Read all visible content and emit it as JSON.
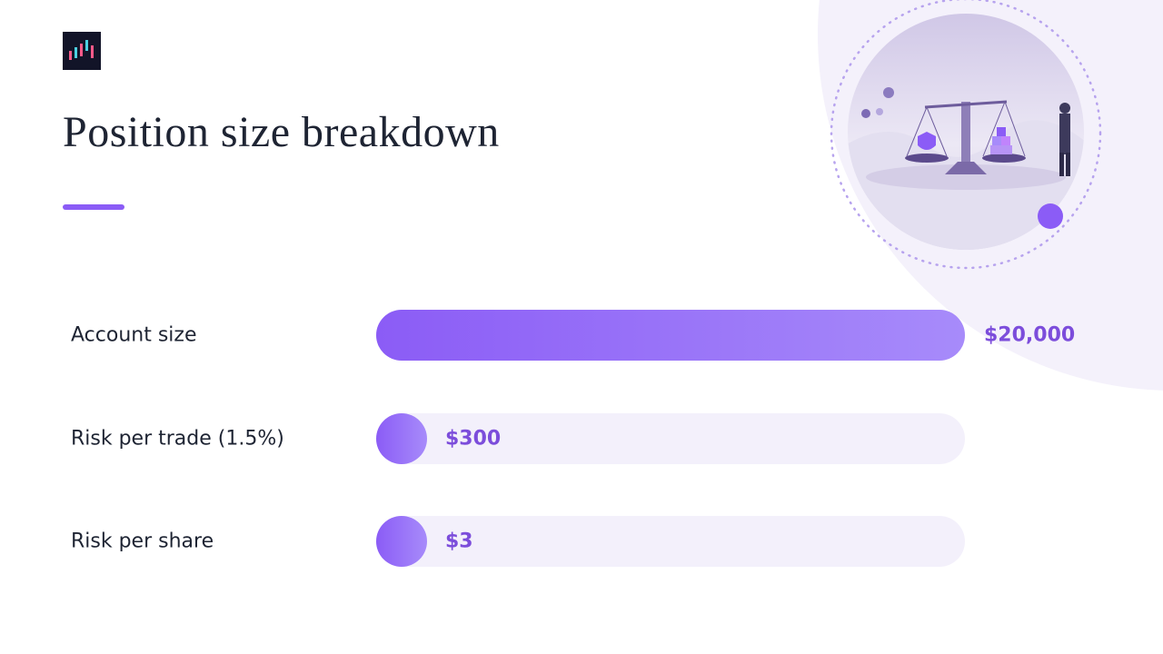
{
  "header": {
    "title": "Position size breakdown"
  },
  "rows": [
    {
      "label": "Account size",
      "value": "$20,000"
    },
    {
      "label": "Risk per trade (1.5%)",
      "value": "$300"
    },
    {
      "label": "Risk per share",
      "value": "$3"
    }
  ]
}
